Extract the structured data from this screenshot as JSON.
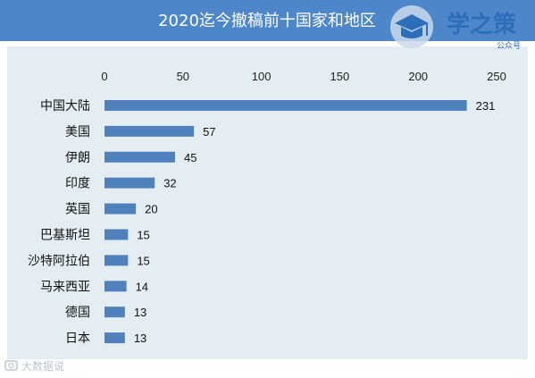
{
  "colors": {
    "header_bg": "#4d86c9",
    "plot_bg": "#e3edf2",
    "bar": "#4f81bd",
    "outer_bg": "#ffffff",
    "logo": "#2c6fb8"
  },
  "brand": {
    "name": "学之策",
    "sub": "公众号",
    "icon": "graduation-cap-icon"
  },
  "watermark": {
    "text": "大数据说",
    "icon": "camera-icon"
  },
  "chart_data": {
    "type": "bar",
    "orientation": "horizontal",
    "title": "2020迄今撤稿前十国家和地区",
    "categories": [
      "中国大陆",
      "美国",
      "伊朗",
      "印度",
      "英国",
      "巴基斯坦",
      "沙特阿拉伯",
      "马来西亚",
      "德国",
      "日本"
    ],
    "values": [
      231,
      57,
      45,
      32,
      20,
      15,
      15,
      14,
      13,
      13
    ],
    "xlim": [
      0,
      250
    ],
    "xticks": [
      0,
      50,
      100,
      150,
      200,
      250
    ],
    "xlabel": "",
    "ylabel": "",
    "grid": false,
    "legend": "none",
    "data_labels": true,
    "axis_position": "top"
  }
}
